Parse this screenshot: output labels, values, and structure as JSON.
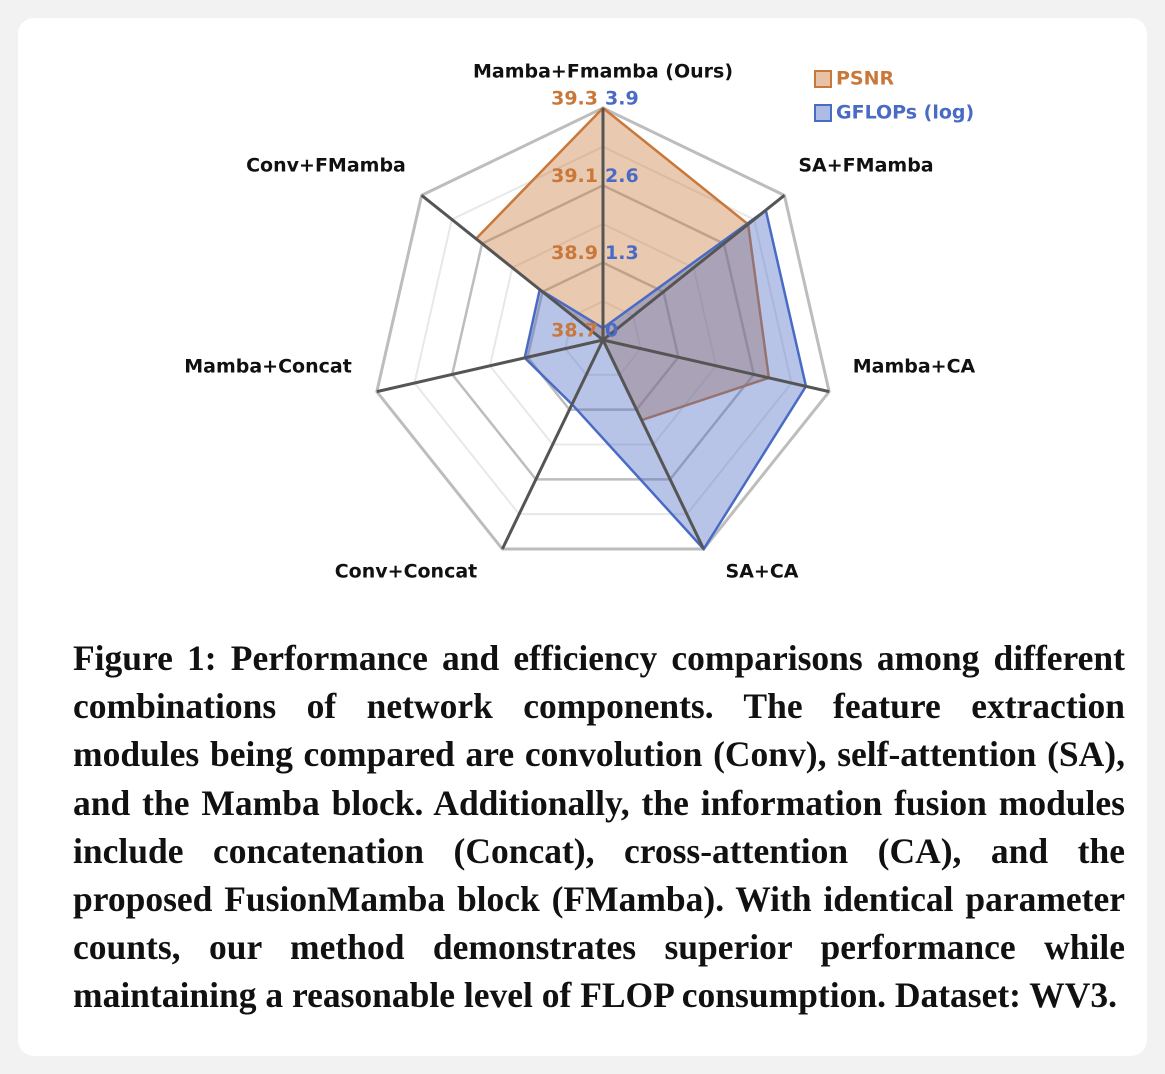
{
  "chart_data": {
    "type": "radar",
    "categories": [
      "Mamba+Fmamba (Ours)",
      "SA+FMamba",
      "Mamba+CA",
      "SA+CA",
      "Conv+Concat",
      "Mamba+Concat",
      "Conv+FMamba"
    ],
    "series": [
      {
        "name": "PSNR",
        "color": "#c9783a",
        "values": [
          39.3,
          39.18,
          39.14,
          38.93,
          38.7,
          38.7,
          39.12
        ],
        "rlim": [
          38.7,
          39.3
        ],
        "rticks": [
          38.7,
          38.9,
          39.1,
          39.3
        ]
      },
      {
        "name": "GFLOPs (log)",
        "color": "#4a6bc4",
        "values": [
          0.2,
          3.5,
          3.5,
          3.9,
          1.2,
          1.35,
          1.36
        ],
        "rlim": [
          0,
          3.9
        ],
        "rticks": [
          0,
          1.3,
          2.6,
          3.9
        ]
      }
    ],
    "legend": "top-right",
    "grid": true
  },
  "caption": "Figure 1: Performance and efficiency comparisons among different combinations of network components. The feature extraction modules being compared are convolution (Conv), self-attention (SA), and the Mamba block. Additionally, the information fusion modules include concatenation (Concat), cross-attention (CA), and the proposed FusionMamba block (FMamba). With identical parameter counts, our method demonstrates superior performance while maintaining a reasonable level of FLOP consumption. Dataset: WV3."
}
